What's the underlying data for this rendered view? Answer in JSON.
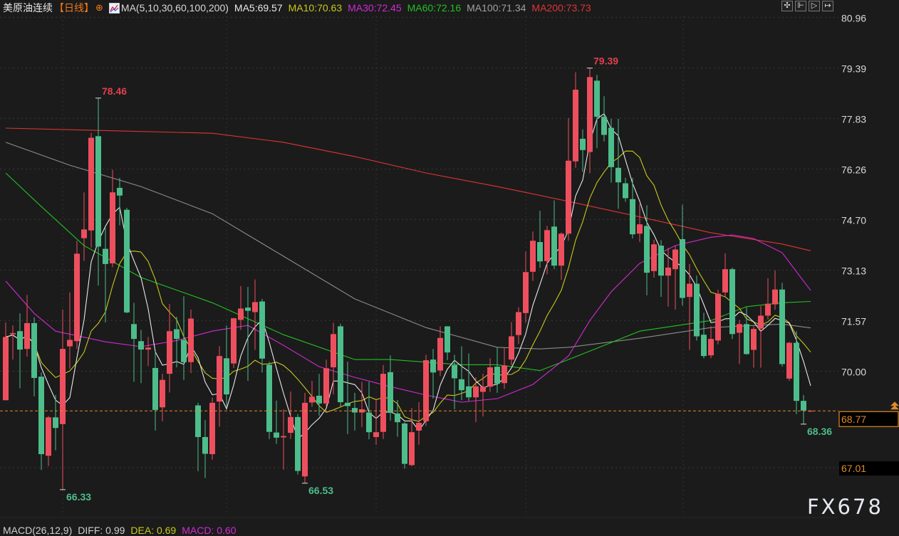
{
  "header": {
    "instrument": "美原油连续",
    "period": "【日线】",
    "ma_setting": "MA(5,10,30,60,100,200)",
    "ma_values": [
      {
        "label": "MA5:69.57",
        "color": "#e8e8e8"
      },
      {
        "label": "MA10:70.63",
        "color": "#c8c81e"
      },
      {
        "label": "MA30:72.45",
        "color": "#d22ad2"
      },
      {
        "label": "MA60:72.16",
        "color": "#22c022"
      },
      {
        "label": "MA100:71.34",
        "color": "#a0a0a0"
      },
      {
        "label": "MA200:73.73",
        "color": "#e03434"
      }
    ]
  },
  "toolbar": {
    "icons": [
      "crosshair-icon",
      "zoom-range-icon",
      "play-icon",
      "exit-icon"
    ]
  },
  "macd": {
    "title": "MACD(26,12,9)",
    "diff": "DIFF: 0.99",
    "dea": "DEA: 0.69",
    "macd": "MACD: 0.60"
  },
  "watermark": "FX678",
  "colors": {
    "up": "#ee4f5e",
    "down": "#4dbd8b",
    "background": "#1b1b1b",
    "last_price": "#e08a2c",
    "ma5": "#e8e8e8",
    "ma10": "#c8c81e",
    "ma30": "#d22ad2",
    "ma60": "#22c022",
    "ma100": "#8c8c8c",
    "ma200": "#e03434"
  },
  "chart_data": {
    "type": "candlestick",
    "ohlc_format": [
      "open",
      "high",
      "low",
      "close"
    ],
    "y_axis": {
      "position": "right",
      "ticks": [
        "80.96",
        "79.39",
        "77.83",
        "76.26",
        "74.70",
        "73.13",
        "71.57",
        "70.00",
        "67.01"
      ],
      "ylim": [
        65.6,
        81.5
      ]
    },
    "last_price": {
      "value": 68.77,
      "label": "68.77"
    },
    "grid": true,
    "candles": [
      [
        69.1,
        71.51,
        69.1,
        71.06
      ],
      [
        71.14,
        71.42,
        70.36,
        71.18
      ],
      [
        71.24,
        71.79,
        69.47,
        70.67
      ],
      [
        70.69,
        72.36,
        70.45,
        71.49
      ],
      [
        71.49,
        71.67,
        69.22,
        69.79
      ],
      [
        69.83,
        69.96,
        66.94,
        67.43
      ],
      [
        67.38,
        68.61,
        67.06,
        68.57
      ],
      [
        68.57,
        69.26,
        67.55,
        68.24
      ],
      [
        68.36,
        71.91,
        66.33,
        70.69
      ],
      [
        70.77,
        72.44,
        70.08,
        70.97
      ],
      [
        70.93,
        74.04,
        70.69,
        73.64
      ],
      [
        74.12,
        75.54,
        73.42,
        74.39
      ],
      [
        74.36,
        77.38,
        73.83,
        77.23
      ],
      [
        77.28,
        78.46,
        72.65,
        73.86
      ],
      [
        73.79,
        74.44,
        71.51,
        73.32
      ],
      [
        73.34,
        76.24,
        73.22,
        75.54
      ],
      [
        75.68,
        75.99,
        74.52,
        75.44
      ],
      [
        75.0,
        75.06,
        71.79,
        71.82
      ],
      [
        71.46,
        72.12,
        69.67,
        71.0
      ],
      [
        70.93,
        71.28,
        69.63,
        70.67
      ],
      [
        70.67,
        71.06,
        70.16,
        70.73
      ],
      [
        70.1,
        70.61,
        68.16,
        68.8
      ],
      [
        68.88,
        69.92,
        68.45,
        69.73
      ],
      [
        69.92,
        72.08,
        69.34,
        71.24
      ],
      [
        71.3,
        71.69,
        70.12,
        71.0
      ],
      [
        70.97,
        72.32,
        69.73,
        70.28
      ],
      [
        70.28,
        71.91,
        69.94,
        71.63
      ],
      [
        68.94,
        69.02,
        66.9,
        67.96
      ],
      [
        67.96,
        68.49,
        66.69,
        67.44
      ],
      [
        67.43,
        69.18,
        67.26,
        69.02
      ],
      [
        69.06,
        70.78,
        68.28,
        70.47
      ],
      [
        70.4,
        71.41,
        68.9,
        69.28
      ],
      [
        70.24,
        71.65,
        70.1,
        71.64
      ],
      [
        71.59,
        72.64,
        71.28,
        71.94
      ],
      [
        71.97,
        72.61,
        69.7,
        71.87
      ],
      [
        71.83,
        72.84,
        70.66,
        72.14
      ],
      [
        72.16,
        72.24,
        69.96,
        70.39
      ],
      [
        70.2,
        70.29,
        67.9,
        68.12
      ],
      [
        68.1,
        69.09,
        67.75,
        67.94
      ],
      [
        67.95,
        68.82,
        66.95,
        67.99
      ],
      [
        68.09,
        69.37,
        67.9,
        68.58
      ],
      [
        68.58,
        68.67,
        66.8,
        66.91
      ],
      [
        66.74,
        69.33,
        66.53,
        69.02
      ],
      [
        69.03,
        69.7,
        68.9,
        69.21
      ],
      [
        69.24,
        69.92,
        68.62,
        69.0
      ],
      [
        69.0,
        70.36,
        68.9,
        70.09
      ],
      [
        70.12,
        71.5,
        69.28,
        71.15
      ],
      [
        71.39,
        71.47,
        68.9,
        69.04
      ],
      [
        69.02,
        70.29,
        68.05,
        68.92
      ],
      [
        68.86,
        69.33,
        68.16,
        68.72
      ],
      [
        68.72,
        69.67,
        68.27,
        68.82
      ],
      [
        68.72,
        69.67,
        67.89,
        68.11
      ],
      [
        67.96,
        69.15,
        67.72,
        68.11
      ],
      [
        68.12,
        70.19,
        67.9,
        69.92
      ],
      [
        69.97,
        70.49,
        68.47,
        68.71
      ],
      [
        68.69,
        69.11,
        67.97,
        68.42
      ],
      [
        68.38,
        68.42,
        66.98,
        67.13
      ],
      [
        67.09,
        68.86,
        67.06,
        68.11
      ],
      [
        68.16,
        69.04,
        67.72,
        68.4
      ],
      [
        68.45,
        70.51,
        68.3,
        70.34
      ],
      [
        70.36,
        70.69,
        69.15,
        69.96
      ],
      [
        70.02,
        71.39,
        69.85,
        71.03
      ],
      [
        71.39,
        71.39,
        70.34,
        70.58
      ],
      [
        70.19,
        70.51,
        68.82,
        69.78
      ],
      [
        69.75,
        70.77,
        69.1,
        69.41
      ],
      [
        69.53,
        70.55,
        69.08,
        69.19
      ],
      [
        69.19,
        69.81,
        68.42,
        69.53
      ],
      [
        69.36,
        69.92,
        68.6,
        69.52
      ],
      [
        69.52,
        70.4,
        69.36,
        70.12
      ],
      [
        70.14,
        70.73,
        69.33,
        69.61
      ],
      [
        69.63,
        70.73,
        69.45,
        70.18
      ],
      [
        70.36,
        71.52,
        70.18,
        71.08
      ],
      [
        71.12,
        71.98,
        70.84,
        71.83
      ],
      [
        71.8,
        73.71,
        71.5,
        73.07
      ],
      [
        73.08,
        74.33,
        72.8,
        74.04
      ],
      [
        74.0,
        74.97,
        73.2,
        73.4
      ],
      [
        73.41,
        74.5,
        73.0,
        74.37
      ],
      [
        74.48,
        75.29,
        73.16,
        73.27
      ],
      [
        73.27,
        74.3,
        72.83,
        74.26
      ],
      [
        74.26,
        77.84,
        74.04,
        76.52
      ],
      [
        76.5,
        79.26,
        76.3,
        78.72
      ],
      [
        77.2,
        77.49,
        76.17,
        76.85
      ],
      [
        76.79,
        79.39,
        76.13,
        79.11
      ],
      [
        79.0,
        79.18,
        76.91,
        77.88
      ],
      [
        77.88,
        78.52,
        77.12,
        77.32
      ],
      [
        77.54,
        77.82,
        75.84,
        76.32
      ],
      [
        76.3,
        77.82,
        75.03,
        75.85
      ],
      [
        75.82,
        75.99,
        75.25,
        75.36
      ],
      [
        75.33,
        75.99,
        74.11,
        74.24
      ],
      [
        74.26,
        75.18,
        74.0,
        74.55
      ],
      [
        74.5,
        75.14,
        72.35,
        73.05
      ],
      [
        73.1,
        74.07,
        72.9,
        73.93
      ],
      [
        73.89,
        74.06,
        72.3,
        72.96
      ],
      [
        72.96,
        73.82,
        72.0,
        73.21
      ],
      [
        73.16,
        73.89,
        71.91,
        73.77
      ],
      [
        74.09,
        75.16,
        72.03,
        72.27
      ],
      [
        72.3,
        73.32,
        70.66,
        72.71
      ],
      [
        72.71,
        72.96,
        70.95,
        71.08
      ],
      [
        71.13,
        71.81,
        70.4,
        70.47
      ],
      [
        70.49,
        71.39,
        70.4,
        71.0
      ],
      [
        70.95,
        72.52,
        70.83,
        72.4
      ],
      [
        72.44,
        73.65,
        72.3,
        73.16
      ],
      [
        73.16,
        73.21,
        71.0,
        71.15
      ],
      [
        71.19,
        71.58,
        70.22,
        71.46
      ],
      [
        71.46,
        71.98,
        70.51,
        70.53
      ],
      [
        70.66,
        71.39,
        70.11,
        71.31
      ],
      [
        71.32,
        72.02,
        70.11,
        71.72
      ],
      [
        71.72,
        72.88,
        71.6,
        72.09
      ],
      [
        72.07,
        73.12,
        71.9,
        72.53
      ],
      [
        72.53,
        72.74,
        70.14,
        70.22
      ],
      [
        69.77,
        70.91,
        69.7,
        70.88
      ],
      [
        70.88,
        71.24,
        68.67,
        69.08
      ],
      [
        69.08,
        69.26,
        68.36,
        68.78
      ],
      [
        68.77,
        68.8,
        68.74,
        68.77
      ]
    ],
    "moving_averages": {
      "ma30": [
        [
          0,
          72.79
        ],
        [
          4,
          71.79
        ],
        [
          7,
          71.24
        ],
        [
          14,
          70.91
        ],
        [
          19,
          70.76
        ],
        [
          24,
          70.95
        ],
        [
          29,
          71.24
        ],
        [
          34,
          71.42
        ],
        [
          39,
          70.8
        ],
        [
          44,
          70.14
        ],
        [
          49,
          69.81
        ],
        [
          54,
          69.52
        ],
        [
          59,
          69.26
        ],
        [
          64,
          69.04
        ],
        [
          69,
          69.15
        ],
        [
          74,
          69.59
        ],
        [
          79,
          70.47
        ],
        [
          82,
          71.57
        ],
        [
          85,
          72.46
        ],
        [
          89,
          73.34
        ],
        [
          94,
          73.89
        ],
        [
          99,
          74.15
        ],
        [
          102,
          74.22
        ],
        [
          105,
          74.11
        ],
        [
          109,
          73.67
        ],
        [
          113,
          72.5
        ]
      ],
      "ma60": [
        [
          0,
          76.14
        ],
        [
          5,
          75.1
        ],
        [
          11,
          73.89
        ],
        [
          19,
          72.9
        ],
        [
          29,
          72.12
        ],
        [
          39,
          71.13
        ],
        [
          49,
          70.36
        ],
        [
          54,
          70.36
        ],
        [
          64,
          70.2
        ],
        [
          69,
          70.2
        ],
        [
          75,
          70.02
        ],
        [
          79,
          70.36
        ],
        [
          84,
          70.8
        ],
        [
          89,
          71.24
        ],
        [
          99,
          71.57
        ],
        [
          104,
          72.0
        ],
        [
          109,
          72.12
        ],
        [
          113,
          72.16
        ]
      ],
      "ma100": [
        [
          0,
          77.09
        ],
        [
          9,
          76.38
        ],
        [
          19,
          75.72
        ],
        [
          29,
          74.88
        ],
        [
          39,
          73.56
        ],
        [
          49,
          72.24
        ],
        [
          59,
          71.35
        ],
        [
          69,
          70.74
        ],
        [
          75,
          70.69
        ],
        [
          79,
          70.74
        ],
        [
          89,
          71.02
        ],
        [
          99,
          71.35
        ],
        [
          109,
          71.46
        ],
        [
          113,
          71.34
        ]
      ],
      "ma200": [
        [
          0,
          77.53
        ],
        [
          13,
          77.46
        ],
        [
          29,
          77.37
        ],
        [
          39,
          77.09
        ],
        [
          49,
          76.65
        ],
        [
          59,
          76.14
        ],
        [
          69,
          75.72
        ],
        [
          79,
          75.26
        ],
        [
          89,
          74.78
        ],
        [
          99,
          74.29
        ],
        [
          109,
          73.94
        ],
        [
          113,
          73.73
        ]
      ]
    },
    "annotations": [
      {
        "label": "78.46",
        "candle": 13,
        "kind": "high"
      },
      {
        "label": "66.33",
        "candle": 8,
        "kind": "low"
      },
      {
        "label": "66.53",
        "candle": 42,
        "kind": "low"
      },
      {
        "label": "79.39",
        "candle": 82,
        "kind": "high"
      },
      {
        "label": "68.36",
        "candle": 112,
        "kind": "low"
      }
    ]
  }
}
